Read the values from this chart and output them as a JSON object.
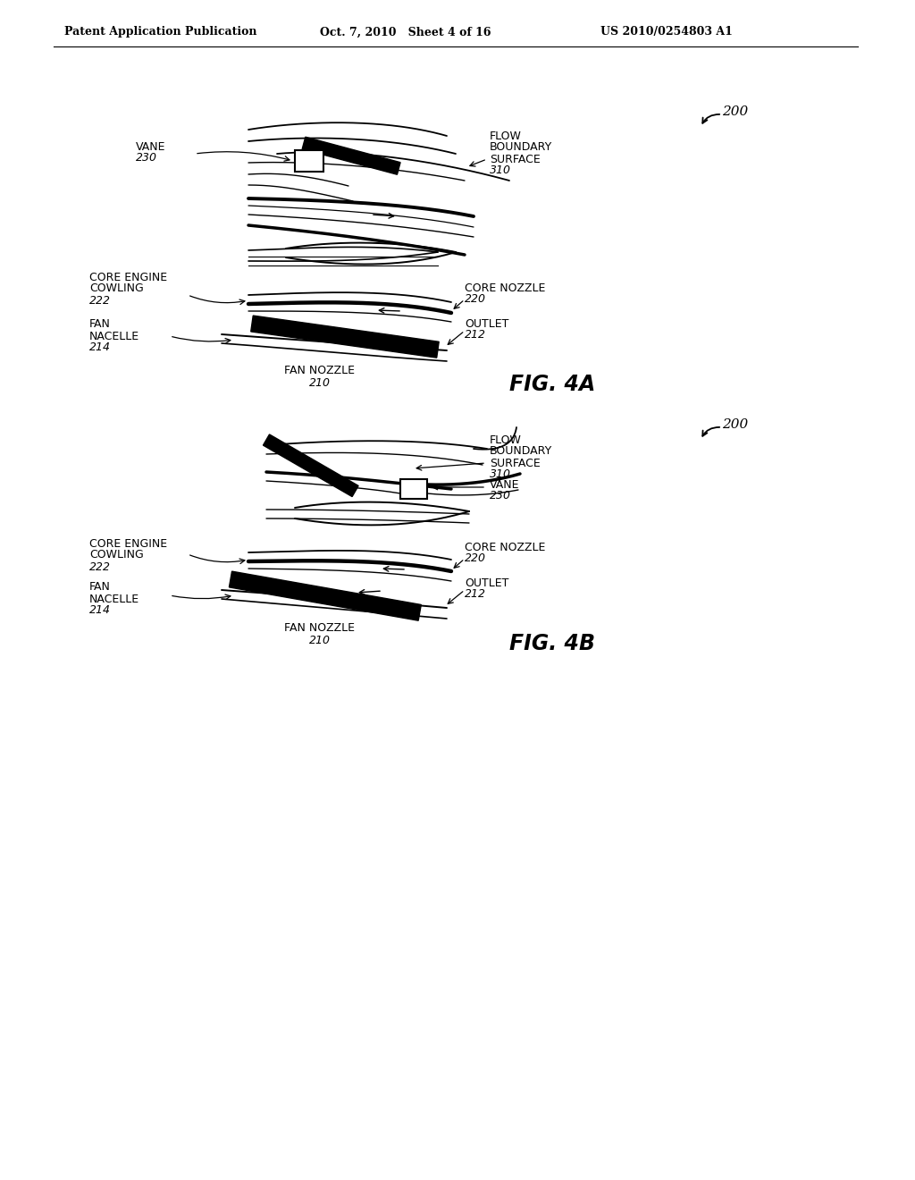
{
  "header_left": "Patent Application Publication",
  "header_center": "Oct. 7, 2010   Sheet 4 of 16",
  "header_right": "US 2010/0254803 A1",
  "bg_color": "#ffffff",
  "line_color": "#000000"
}
